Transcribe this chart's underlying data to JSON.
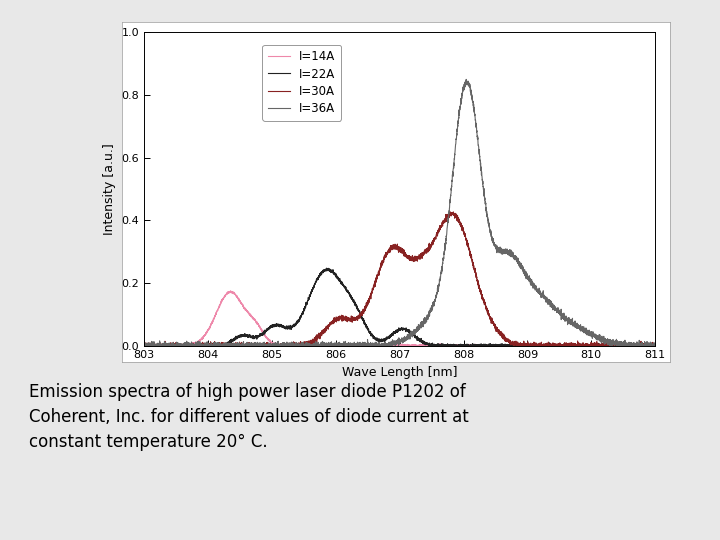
{
  "xlabel": "Wave Length [nm]",
  "ylabel": "Intensity [a.u.]",
  "xlim": [
    803,
    811
  ],
  "ylim": [
    0.0,
    1.0
  ],
  "xticks": [
    803,
    804,
    805,
    806,
    807,
    808,
    809,
    810,
    811
  ],
  "yticks": [
    0.0,
    0.2,
    0.4,
    0.6,
    0.8,
    1.0
  ],
  "caption": "Emission spectra of high power laser diode P1202 of\nCoherent, Inc. for different values of diode current at\nconstant temperature 20° C.",
  "legend_labels": [
    "I=14A",
    "I=22A",
    "I=30A",
    "I=36A"
  ],
  "legend_colors": [
    "#ee88aa",
    "#222222",
    "#882222",
    "#666666"
  ],
  "background_color": "#ffffff",
  "plot_bg_color": "#ffffff",
  "figsize": [
    7.2,
    5.4
  ],
  "dpi": 100,
  "outer_bg": "#cccccc"
}
